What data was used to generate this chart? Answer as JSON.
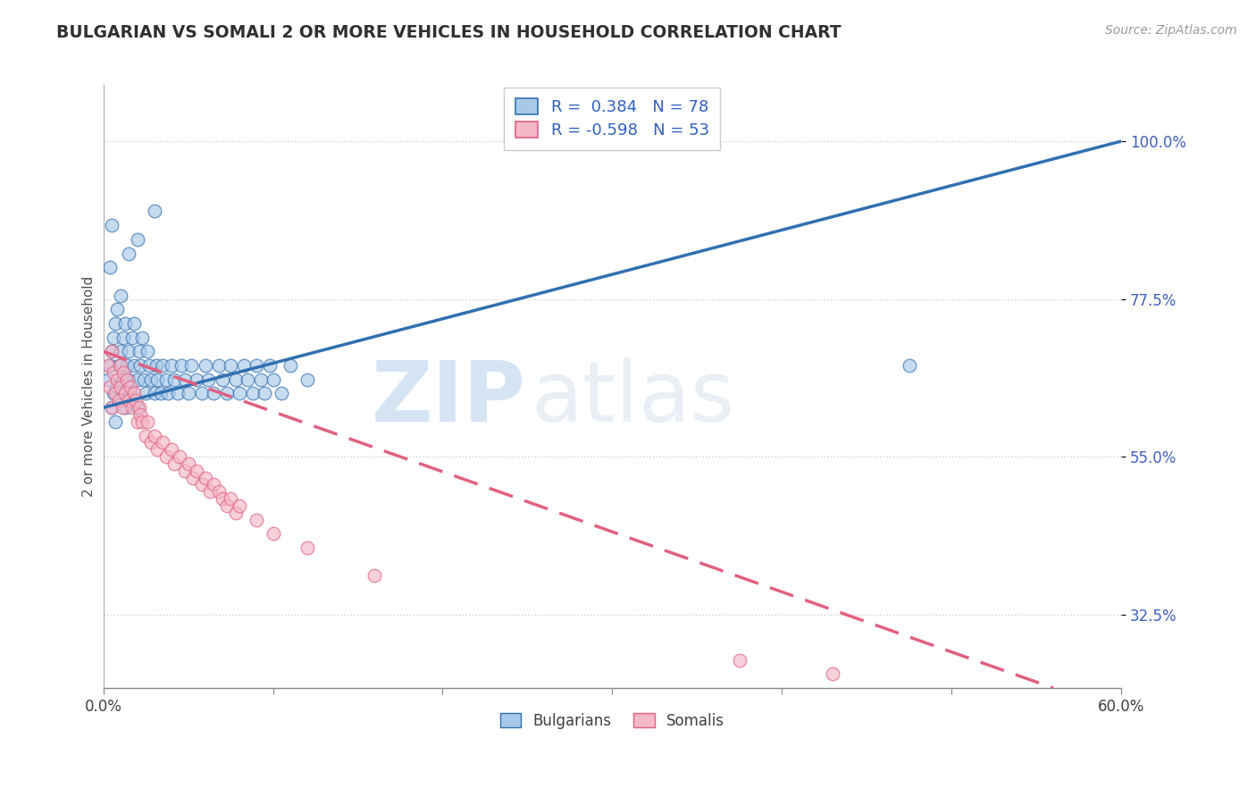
{
  "title": "BULGARIAN VS SOMALI 2 OR MORE VEHICLES IN HOUSEHOLD CORRELATION CHART",
  "source_text": "Source: ZipAtlas.com",
  "ylabel": "2 or more Vehicles in Household",
  "xlim": [
    0.0,
    60.0
  ],
  "ylim": [
    22.0,
    108.0
  ],
  "x_ticks": [
    0.0,
    10.0,
    20.0,
    30.0,
    40.0,
    50.0,
    60.0
  ],
  "x_tick_labels": [
    "0.0%",
    "",
    "",
    "",
    "",
    "",
    "60.0%"
  ],
  "y_ticks": [
    32.5,
    55.0,
    77.5,
    100.0
  ],
  "y_tick_labels": [
    "32.5%",
    "55.0%",
    "77.5%",
    "100.0%"
  ],
  "legend_r_bulgarian": "0.384",
  "legend_n_bulgarian": "78",
  "legend_r_somali": "-0.598",
  "legend_n_somali": "53",
  "legend_label_bulgarian": "Bulgarians",
  "legend_label_somali": "Somalis",
  "color_bulgarian": "#a8c8e8",
  "color_somali": "#f4b8c8",
  "color_line_bulgarian": "#3070b0",
  "color_line_somali": "#e06080",
  "watermark_zip": "ZIP",
  "watermark_atlas": "atlas",
  "title_color": "#303030",
  "axis_label_color": "#505050",
  "tick_color_y": "#4060c0",
  "background_color": "#ffffff",
  "grid_color": "#d0d0d0",
  "bulgarians_x": [
    0.3,
    0.4,
    0.5,
    0.5,
    0.6,
    0.6,
    0.7,
    0.7,
    0.8,
    0.8,
    0.9,
    1.0,
    1.0,
    1.0,
    1.1,
    1.2,
    1.2,
    1.3,
    1.3,
    1.4,
    1.5,
    1.5,
    1.6,
    1.7,
    1.8,
    1.8,
    2.0,
    2.0,
    2.1,
    2.2,
    2.3,
    2.4,
    2.5,
    2.6,
    2.7,
    2.8,
    3.0,
    3.1,
    3.2,
    3.4,
    3.5,
    3.7,
    3.8,
    4.0,
    4.2,
    4.4,
    4.6,
    4.8,
    5.0,
    5.2,
    5.5,
    5.8,
    6.0,
    6.2,
    6.5,
    6.8,
    7.0,
    7.3,
    7.5,
    7.8,
    8.0,
    8.3,
    8.5,
    8.8,
    9.0,
    9.3,
    9.5,
    9.8,
    10.0,
    10.5,
    11.0,
    12.0,
    0.4,
    0.5,
    1.5,
    2.0,
    3.0,
    47.5
  ],
  "bulgarians_y": [
    66.0,
    68.0,
    62.0,
    70.0,
    64.0,
    72.0,
    60.0,
    74.0,
    76.0,
    65.0,
    68.0,
    63.0,
    70.0,
    78.0,
    66.0,
    64.0,
    72.0,
    62.0,
    74.0,
    68.0,
    66.0,
    70.0,
    64.0,
    72.0,
    68.0,
    74.0,
    66.0,
    62.0,
    70.0,
    68.0,
    72.0,
    66.0,
    64.0,
    70.0,
    68.0,
    66.0,
    64.0,
    68.0,
    66.0,
    64.0,
    68.0,
    66.0,
    64.0,
    68.0,
    66.0,
    64.0,
    68.0,
    66.0,
    64.0,
    68.0,
    66.0,
    64.0,
    68.0,
    66.0,
    64.0,
    68.0,
    66.0,
    64.0,
    68.0,
    66.0,
    64.0,
    68.0,
    66.0,
    64.0,
    68.0,
    66.0,
    64.0,
    68.0,
    66.0,
    64.0,
    68.0,
    66.0,
    82.0,
    88.0,
    84.0,
    86.0,
    90.0,
    68.0
  ],
  "somalis_x": [
    0.3,
    0.4,
    0.5,
    0.5,
    0.6,
    0.7,
    0.8,
    0.9,
    1.0,
    1.0,
    1.1,
    1.2,
    1.3,
    1.4,
    1.5,
    1.6,
    1.7,
    1.8,
    1.9,
    2.0,
    2.1,
    2.2,
    2.3,
    2.5,
    2.6,
    2.8,
    3.0,
    3.2,
    3.5,
    3.7,
    4.0,
    4.2,
    4.5,
    4.8,
    5.0,
    5.3,
    5.5,
    5.8,
    6.0,
    6.3,
    6.5,
    6.8,
    7.0,
    7.3,
    7.5,
    7.8,
    8.0,
    9.0,
    10.0,
    12.0,
    16.0,
    37.5,
    43.0
  ],
  "somalis_y": [
    68.0,
    65.0,
    70.0,
    62.0,
    67.0,
    64.0,
    66.0,
    63.0,
    65.0,
    68.0,
    62.0,
    67.0,
    64.0,
    66.0,
    63.0,
    65.0,
    62.0,
    64.0,
    63.0,
    60.0,
    62.0,
    61.0,
    60.0,
    58.0,
    60.0,
    57.0,
    58.0,
    56.0,
    57.0,
    55.0,
    56.0,
    54.0,
    55.0,
    53.0,
    54.0,
    52.0,
    53.0,
    51.0,
    52.0,
    50.0,
    51.0,
    50.0,
    49.0,
    48.0,
    49.0,
    47.0,
    48.0,
    46.0,
    44.0,
    42.0,
    38.0,
    26.0,
    24.0
  ],
  "blue_line_x": [
    0.0,
    60.0
  ],
  "blue_line_y": [
    62.0,
    100.0
  ],
  "pink_line_x": [
    0.0,
    56.0
  ],
  "pink_line_y": [
    70.0,
    22.0
  ]
}
